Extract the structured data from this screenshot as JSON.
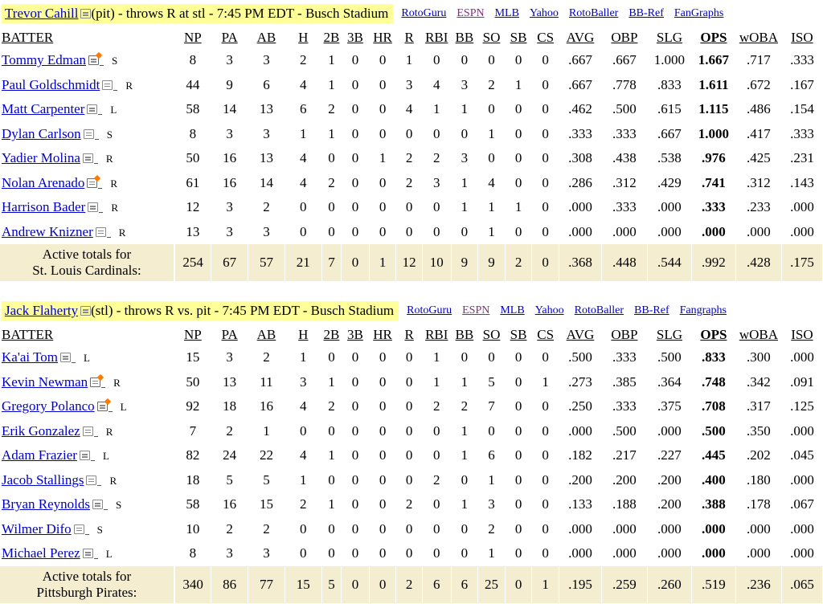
{
  "games": [
    {
      "pitcher": "Trevor Cahill",
      "info": "(pit) - throws R at stl - 7:45 PM EDT - Busch Stadium",
      "links": [
        "RotoGuru",
        "ESPN",
        "MLB",
        "Yahoo",
        "RotoBaller",
        "BB-Ref",
        "FanGraphs"
      ],
      "columns": [
        "BATTER",
        "NP",
        "PA",
        "AB",
        "H",
        "2B",
        "3B",
        "HR",
        "R",
        "RBI",
        "BB",
        "SO",
        "SB",
        "CS",
        "AVG",
        "OBP",
        "SLG",
        "OPS",
        "wOBA",
        "ISO"
      ],
      "rows": [
        {
          "name": "Tommy Edman",
          "hot": true,
          "hand": "S",
          "stats": [
            "8",
            "3",
            "3",
            "2",
            "1",
            "0",
            "0",
            "1",
            "0",
            "0",
            "0",
            "0",
            "0",
            ".667",
            ".667",
            "1.000",
            "1.667",
            ".717",
            ".333"
          ]
        },
        {
          "name": "Paul Goldschmidt",
          "hot": false,
          "hand": "R",
          "stats": [
            "44",
            "9",
            "6",
            "4",
            "1",
            "0",
            "0",
            "3",
            "4",
            "3",
            "2",
            "1",
            "0",
            ".667",
            ".778",
            ".833",
            "1.611",
            ".672",
            ".167"
          ]
        },
        {
          "name": "Matt Carpenter",
          "hot": false,
          "hand": "L",
          "stats": [
            "58",
            "14",
            "13",
            "6",
            "2",
            "0",
            "0",
            "4",
            "1",
            "1",
            "0",
            "0",
            "0",
            ".462",
            ".500",
            ".615",
            "1.115",
            ".486",
            ".154"
          ]
        },
        {
          "name": "Dylan Carlson",
          "hot": false,
          "hand": "S",
          "stats": [
            "8",
            "3",
            "3",
            "1",
            "1",
            "0",
            "0",
            "0",
            "0",
            "0",
            "1",
            "0",
            "0",
            ".333",
            ".333",
            ".667",
            "1.000",
            ".417",
            ".333"
          ]
        },
        {
          "name": "Yadier Molina",
          "hot": false,
          "hand": "R",
          "stats": [
            "50",
            "16",
            "13",
            "4",
            "0",
            "0",
            "1",
            "2",
            "2",
            "3",
            "0",
            "0",
            "0",
            ".308",
            ".438",
            ".538",
            ".976",
            ".425",
            ".231"
          ]
        },
        {
          "name": "Nolan Arenado",
          "hot": true,
          "hand": "R",
          "stats": [
            "61",
            "16",
            "14",
            "4",
            "2",
            "0",
            "0",
            "2",
            "3",
            "1",
            "4",
            "0",
            "0",
            ".286",
            ".312",
            ".429",
            ".741",
            ".312",
            ".143"
          ]
        },
        {
          "name": "Harrison Bader",
          "hot": false,
          "hand": "R",
          "stats": [
            "12",
            "3",
            "2",
            "0",
            "0",
            "0",
            "0",
            "0",
            "0",
            "1",
            "1",
            "1",
            "0",
            ".000",
            ".333",
            ".000",
            ".333",
            ".233",
            ".000"
          ]
        },
        {
          "name": "Andrew Knizner",
          "hot": false,
          "hand": "R",
          "stats": [
            "13",
            "3",
            "3",
            "0",
            "0",
            "0",
            "0",
            "0",
            "0",
            "0",
            "1",
            "0",
            "0",
            ".000",
            ".000",
            ".000",
            ".000",
            ".000",
            ".000"
          ]
        }
      ],
      "totals_line1": "Active totals for",
      "totals_line2": "St. Louis Cardinals:",
      "totals": [
        "254",
        "67",
        "57",
        "21",
        "7",
        "0",
        "1",
        "12",
        "10",
        "9",
        "9",
        "2",
        "0",
        ".368",
        ".448",
        ".544",
        ".992",
        ".428",
        ".175"
      ]
    },
    {
      "pitcher": "Jack Flaherty",
      "info": "(stl) - throws R vs. pit - 7:45 PM EDT - Busch Stadium",
      "links": [
        "RotoGuru",
        "ESPN",
        "MLB",
        "Yahoo",
        "RotoBaller",
        "BB-Ref",
        "Fangraphs"
      ],
      "columns": [
        "BATTER",
        "NP",
        "PA",
        "AB",
        "H",
        "2B",
        "3B",
        "HR",
        "R",
        "RBI",
        "BB",
        "SO",
        "SB",
        "CS",
        "AVG",
        "OBP",
        "SLG",
        "OPS",
        "wOBA",
        "ISO"
      ],
      "rows": [
        {
          "name": "Ka'ai Tom",
          "hot": false,
          "hand": "L",
          "stats": [
            "15",
            "3",
            "2",
            "1",
            "0",
            "0",
            "0",
            "0",
            "1",
            "0",
            "0",
            "0",
            "0",
            ".500",
            ".333",
            ".500",
            ".833",
            ".300",
            ".000"
          ]
        },
        {
          "name": "Kevin Newman",
          "hot": true,
          "hand": "R",
          "stats": [
            "50",
            "13",
            "11",
            "3",
            "1",
            "0",
            "0",
            "0",
            "1",
            "1",
            "5",
            "0",
            "1",
            ".273",
            ".385",
            ".364",
            ".748",
            ".342",
            ".091"
          ]
        },
        {
          "name": "Gregory Polanco",
          "hot": true,
          "hand": "L",
          "stats": [
            "92",
            "18",
            "16",
            "4",
            "2",
            "0",
            "0",
            "0",
            "2",
            "2",
            "7",
            "0",
            "0",
            ".250",
            ".333",
            ".375",
            ".708",
            ".317",
            ".125"
          ]
        },
        {
          "name": "Erik Gonzalez",
          "hot": false,
          "hand": "R",
          "stats": [
            "7",
            "2",
            "1",
            "0",
            "0",
            "0",
            "0",
            "0",
            "0",
            "1",
            "0",
            "0",
            "0",
            ".000",
            ".500",
            ".000",
            ".500",
            ".350",
            ".000"
          ]
        },
        {
          "name": "Adam Frazier",
          "hot": false,
          "hand": "L",
          "stats": [
            "82",
            "24",
            "22",
            "4",
            "1",
            "0",
            "0",
            "0",
            "0",
            "1",
            "6",
            "0",
            "0",
            ".182",
            ".217",
            ".227",
            ".445",
            ".202",
            ".045"
          ]
        },
        {
          "name": "Jacob Stallings",
          "hot": false,
          "hand": "R",
          "stats": [
            "18",
            "5",
            "5",
            "1",
            "0",
            "0",
            "0",
            "0",
            "2",
            "0",
            "1",
            "0",
            "0",
            ".200",
            ".200",
            ".200",
            ".400",
            ".180",
            ".000"
          ]
        },
        {
          "name": "Bryan Reynolds",
          "hot": false,
          "hand": "S",
          "stats": [
            "58",
            "16",
            "15",
            "2",
            "1",
            "0",
            "0",
            "2",
            "0",
            "1",
            "3",
            "0",
            "0",
            ".133",
            ".188",
            ".200",
            ".388",
            ".178",
            ".067"
          ]
        },
        {
          "name": "Wilmer Difo",
          "hot": false,
          "hand": "S",
          "stats": [
            "10",
            "2",
            "2",
            "0",
            "0",
            "0",
            "0",
            "0",
            "0",
            "0",
            "2",
            "0",
            "0",
            ".000",
            ".000",
            ".000",
            ".000",
            ".000",
            ".000"
          ]
        },
        {
          "name": "Michael Perez",
          "hot": false,
          "hand": "L",
          "stats": [
            "8",
            "3",
            "3",
            "0",
            "0",
            "0",
            "0",
            "0",
            "0",
            "0",
            "1",
            "0",
            "0",
            ".000",
            ".000",
            ".000",
            ".000",
            ".000",
            ".000"
          ]
        }
      ],
      "totals_line1": "Active totals for",
      "totals_line2": "Pittsburgh Pirates:",
      "totals": [
        "340",
        "86",
        "77",
        "15",
        "5",
        "0",
        "0",
        "2",
        "6",
        "6",
        "25",
        "0",
        "1",
        ".195",
        ".259",
        ".260",
        ".519",
        ".236",
        ".065"
      ]
    }
  ]
}
